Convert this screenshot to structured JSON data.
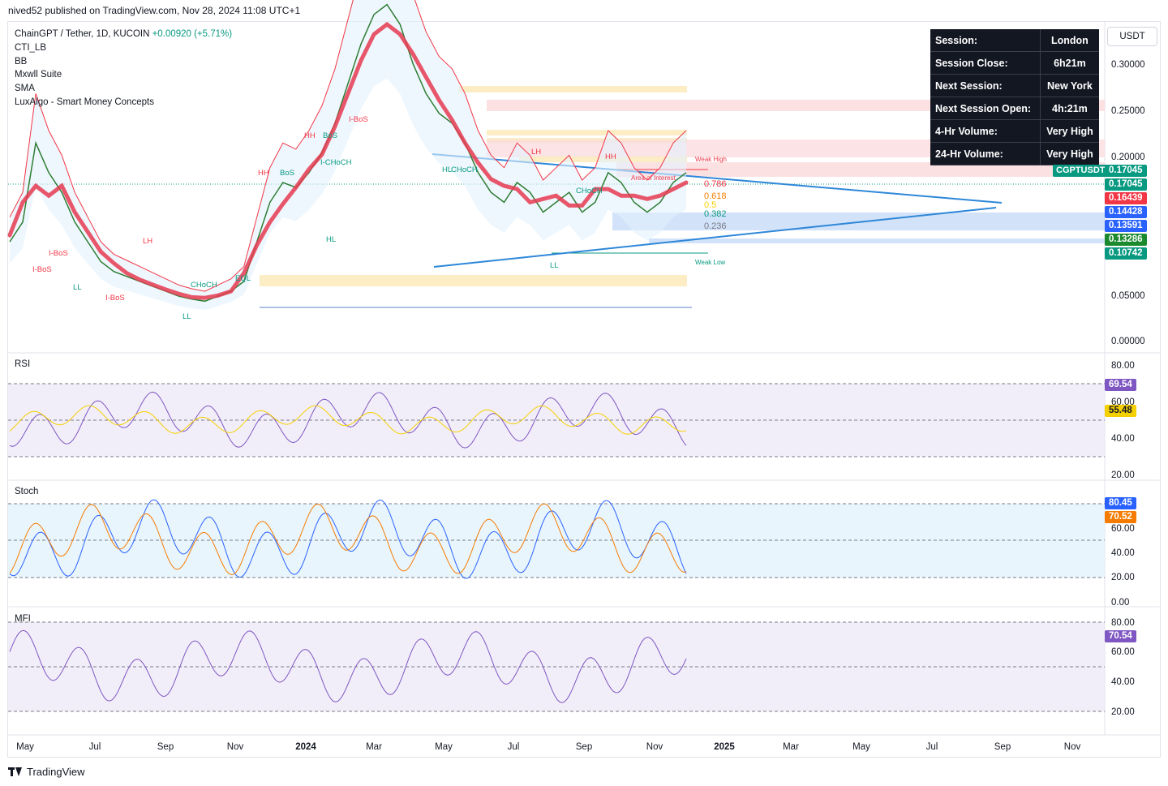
{
  "header": {
    "published": "nived52 published on TradingView.com, Nov 28, 2024 11:08 UTC+1"
  },
  "legend": {
    "symbol": "ChainGPT / Tether, 1D, KUCOIN",
    "change": "+0.00920 (+5.71%)",
    "indicators": [
      "CTI_LB",
      "BB",
      "Mxwll Suite",
      "SMA",
      "LuxAlgo - Smart Money Concepts"
    ]
  },
  "currency_button": "USDT",
  "session_table": [
    {
      "label": "Session:",
      "value": "London"
    },
    {
      "label": "Session Close:",
      "value": "6h21m"
    },
    {
      "label": "Next Session:",
      "value": "New York"
    },
    {
      "label": "Next Session Open:",
      "value": "4h:21m"
    },
    {
      "label": "4-Hr Volume:",
      "value": "Very High"
    },
    {
      "label": "24-Hr Volume:",
      "value": "Very High"
    }
  ],
  "price_tags": [
    {
      "text": "0.17045",
      "color": "#089981"
    },
    {
      "text": "0.17045",
      "color": "#089981"
    },
    {
      "text": "0.16439",
      "color": "#f23645"
    },
    {
      "text": "0.14428",
      "color": "#2962ff"
    },
    {
      "text": "0.13591",
      "color": "#2962ff"
    },
    {
      "text": "0.13286",
      "color": "#1b8a2e"
    },
    {
      "text": "0.10742",
      "color": "#089981"
    }
  ],
  "symbol_tag": "CGPTUSDT",
  "panes": {
    "rsi": {
      "label": "RSI",
      "ticks": [
        "80.00",
        "60.00",
        "40.00",
        "20.00"
      ],
      "tags": [
        {
          "text": "69.54",
          "color": "#7e57c2"
        },
        {
          "text": "55.48",
          "color": "#f5d000"
        }
      ]
    },
    "stoch": {
      "label": "Stoch",
      "ticks": [
        "80.00",
        "60.00",
        "40.00",
        "20.00",
        "0.00"
      ],
      "tags": [
        {
          "text": "80.45",
          "color": "#2962ff"
        },
        {
          "text": "70.52",
          "color": "#f57c00"
        }
      ]
    },
    "mfi": {
      "label": "MFI",
      "ticks": [
        "80.00",
        "60.00",
        "40.00",
        "20.00"
      ],
      "tags": [
        {
          "text": "70.54",
          "color": "#7e57c2"
        }
      ]
    }
  },
  "fib_labels": [
    "0.786",
    "0.618",
    "0.5",
    "0.382",
    "0.236"
  ],
  "footer": {
    "brand": "TradingView"
  },
  "chart_data": {
    "type": "line",
    "title": "ChainGPT / Tether, 1D, KUCOIN",
    "x_ticks": [
      "May",
      "Jul",
      "Sep",
      "Nov",
      "2024",
      "Mar",
      "May",
      "Jul",
      "Sep",
      "Nov",
      "2025",
      "Mar",
      "May",
      "Jul",
      "Sep",
      "Nov"
    ],
    "y_ticks": [
      "0.30000",
      "0.25000",
      "0.20000",
      "0.05000",
      "0.00000"
    ],
    "ylim": [
      0,
      0.32
    ],
    "series": [
      {
        "values": [
          0.1,
          0.12,
          0.2,
          0.17,
          0.15,
          0.12,
          0.1,
          0.08,
          0.07,
          0.065,
          0.06,
          0.055,
          0.05,
          0.045,
          0.042,
          0.04,
          0.045,
          0.05,
          0.06,
          0.1,
          0.14,
          0.16,
          0.155,
          0.17,
          0.19,
          0.22,
          0.26,
          0.3,
          0.33,
          0.34,
          0.32,
          0.28,
          0.25,
          0.23,
          0.22,
          0.2,
          0.17,
          0.15,
          0.14,
          0.16,
          0.15,
          0.13,
          0.14,
          0.15,
          0.13,
          0.14,
          0.17,
          0.16,
          0.14,
          0.13,
          0.14,
          0.16,
          0.17
        ]
      }
    ],
    "structure_labels": [
      "HH",
      "BoS",
      "HL",
      "LH",
      "LL",
      "CHoCH",
      "I-BoS",
      "I-CHoCH",
      "EQL",
      "Weak High",
      "Weak Low",
      "Area of Interest"
    ]
  }
}
